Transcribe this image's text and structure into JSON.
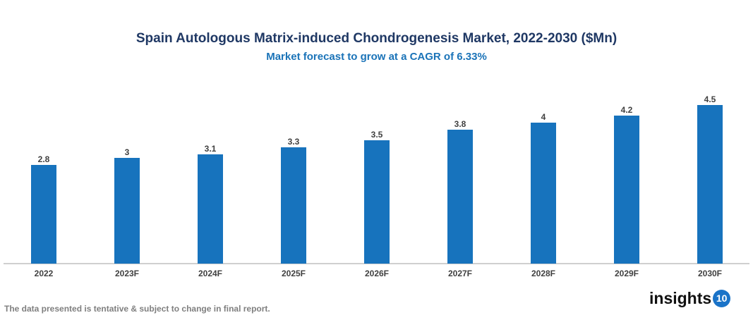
{
  "chart_data": {
    "type": "bar",
    "title": "Spain Autologous Matrix-induced Chondrogenesis Market, 2022-2030 ($Mn)",
    "subtitle": "Market forecast to grow at a CAGR of 6.33%",
    "categories": [
      "2022",
      "2023F",
      "2024F",
      "2025F",
      "2026F",
      "2027F",
      "2028F",
      "2029F",
      "2030F"
    ],
    "values": [
      2.8,
      3,
      3.1,
      3.3,
      3.5,
      3.8,
      4,
      4.2,
      4.5
    ],
    "xlabel": "",
    "ylabel": "",
    "ylim": [
      0,
      5
    ],
    "grid": false,
    "bar_color": "#1773bd"
  },
  "footnote": "The data presented is tentative & subject to change in final report.",
  "logo": {
    "text": "insights",
    "number": "10"
  }
}
